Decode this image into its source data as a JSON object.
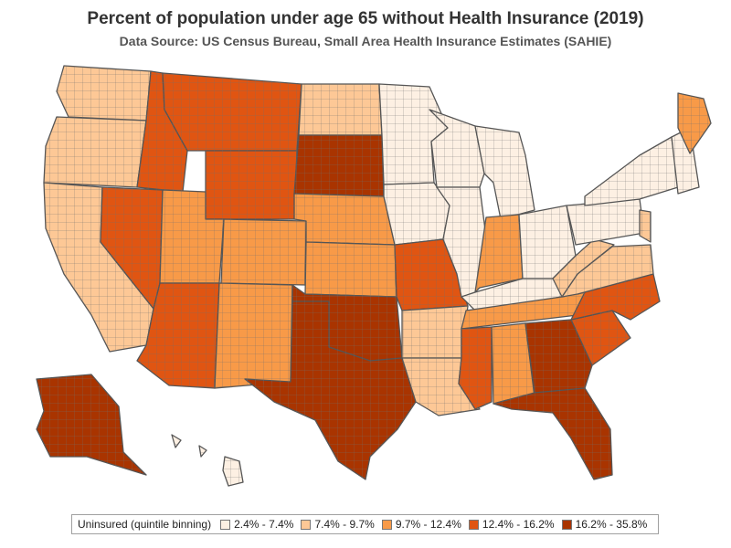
{
  "title": "Percent of population under age 65 without Health Insurance (2019)",
  "subtitle": "Data Source: US Census Bureau, Small Area Health Insurance Estimates (SAHIE)",
  "legend": {
    "title": "Uninsured (quintile binning)",
    "bins": [
      {
        "label": "2.4% - 7.4%",
        "color": "#fdf0e3"
      },
      {
        "label": "7.4% - 9.7%",
        "color": "#fdc896"
      },
      {
        "label": "9.7% - 12.4%",
        "color": "#f89a48"
      },
      {
        "label": "12.4% - 16.2%",
        "color": "#e05512"
      },
      {
        "label": "16.2% - 35.8%",
        "color": "#a93400"
      }
    ]
  },
  "chart_data": {
    "type": "choropleth",
    "metric": "Percent of population under age 65 without health insurance",
    "year": 2019,
    "binning": "quintile",
    "regions": [
      {
        "name": "Washington",
        "bin": 1
      },
      {
        "name": "Oregon",
        "bin": 1
      },
      {
        "name": "California",
        "bin": 1
      },
      {
        "name": "Nevada",
        "bin": 3
      },
      {
        "name": "Idaho",
        "bin": 3
      },
      {
        "name": "Montana",
        "bin": 3
      },
      {
        "name": "Wyoming",
        "bin": 3
      },
      {
        "name": "Utah",
        "bin": 2
      },
      {
        "name": "Arizona",
        "bin": 3
      },
      {
        "name": "Colorado",
        "bin": 2
      },
      {
        "name": "New Mexico",
        "bin": 2
      },
      {
        "name": "North Dakota",
        "bin": 1
      },
      {
        "name": "South Dakota",
        "bin": 4
      },
      {
        "name": "Nebraska",
        "bin": 2
      },
      {
        "name": "Kansas",
        "bin": 2
      },
      {
        "name": "Oklahoma",
        "bin": 4
      },
      {
        "name": "Texas",
        "bin": 4
      },
      {
        "name": "Minnesota",
        "bin": 0
      },
      {
        "name": "Iowa",
        "bin": 0
      },
      {
        "name": "Missouri",
        "bin": 3
      },
      {
        "name": "Arkansas",
        "bin": 1
      },
      {
        "name": "Louisiana",
        "bin": 1
      },
      {
        "name": "Wisconsin",
        "bin": 0
      },
      {
        "name": "Illinois",
        "bin": 0
      },
      {
        "name": "Michigan",
        "bin": 0
      },
      {
        "name": "Indiana",
        "bin": 2
      },
      {
        "name": "Ohio",
        "bin": 0
      },
      {
        "name": "Kentucky",
        "bin": 0
      },
      {
        "name": "Tennessee",
        "bin": 2
      },
      {
        "name": "Mississippi",
        "bin": 3
      },
      {
        "name": "Alabama",
        "bin": 2
      },
      {
        "name": "Georgia",
        "bin": 4
      },
      {
        "name": "Florida",
        "bin": 4
      },
      {
        "name": "South Carolina",
        "bin": 3
      },
      {
        "name": "North Carolina",
        "bin": 3
      },
      {
        "name": "Virginia",
        "bin": 1
      },
      {
        "name": "West Virginia",
        "bin": 1
      },
      {
        "name": "Pennsylvania",
        "bin": 0
      },
      {
        "name": "New York",
        "bin": 0
      },
      {
        "name": "New Jersey",
        "bin": 1
      },
      {
        "name": "New England",
        "bin": 0
      },
      {
        "name": "Maine",
        "bin": 2
      },
      {
        "name": "Alaska",
        "bin": 4
      },
      {
        "name": "Hawaii",
        "bin": 0
      }
    ]
  }
}
